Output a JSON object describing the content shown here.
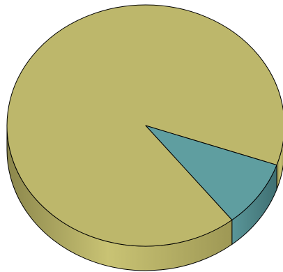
{
  "chart_data": {
    "type": "pie",
    "style": "3d",
    "title": "",
    "slices": [
      {
        "value": 91,
        "color": "#bdb76b"
      },
      {
        "value": 9,
        "color": "#5f9ea0"
      }
    ],
    "legend": "none"
  }
}
